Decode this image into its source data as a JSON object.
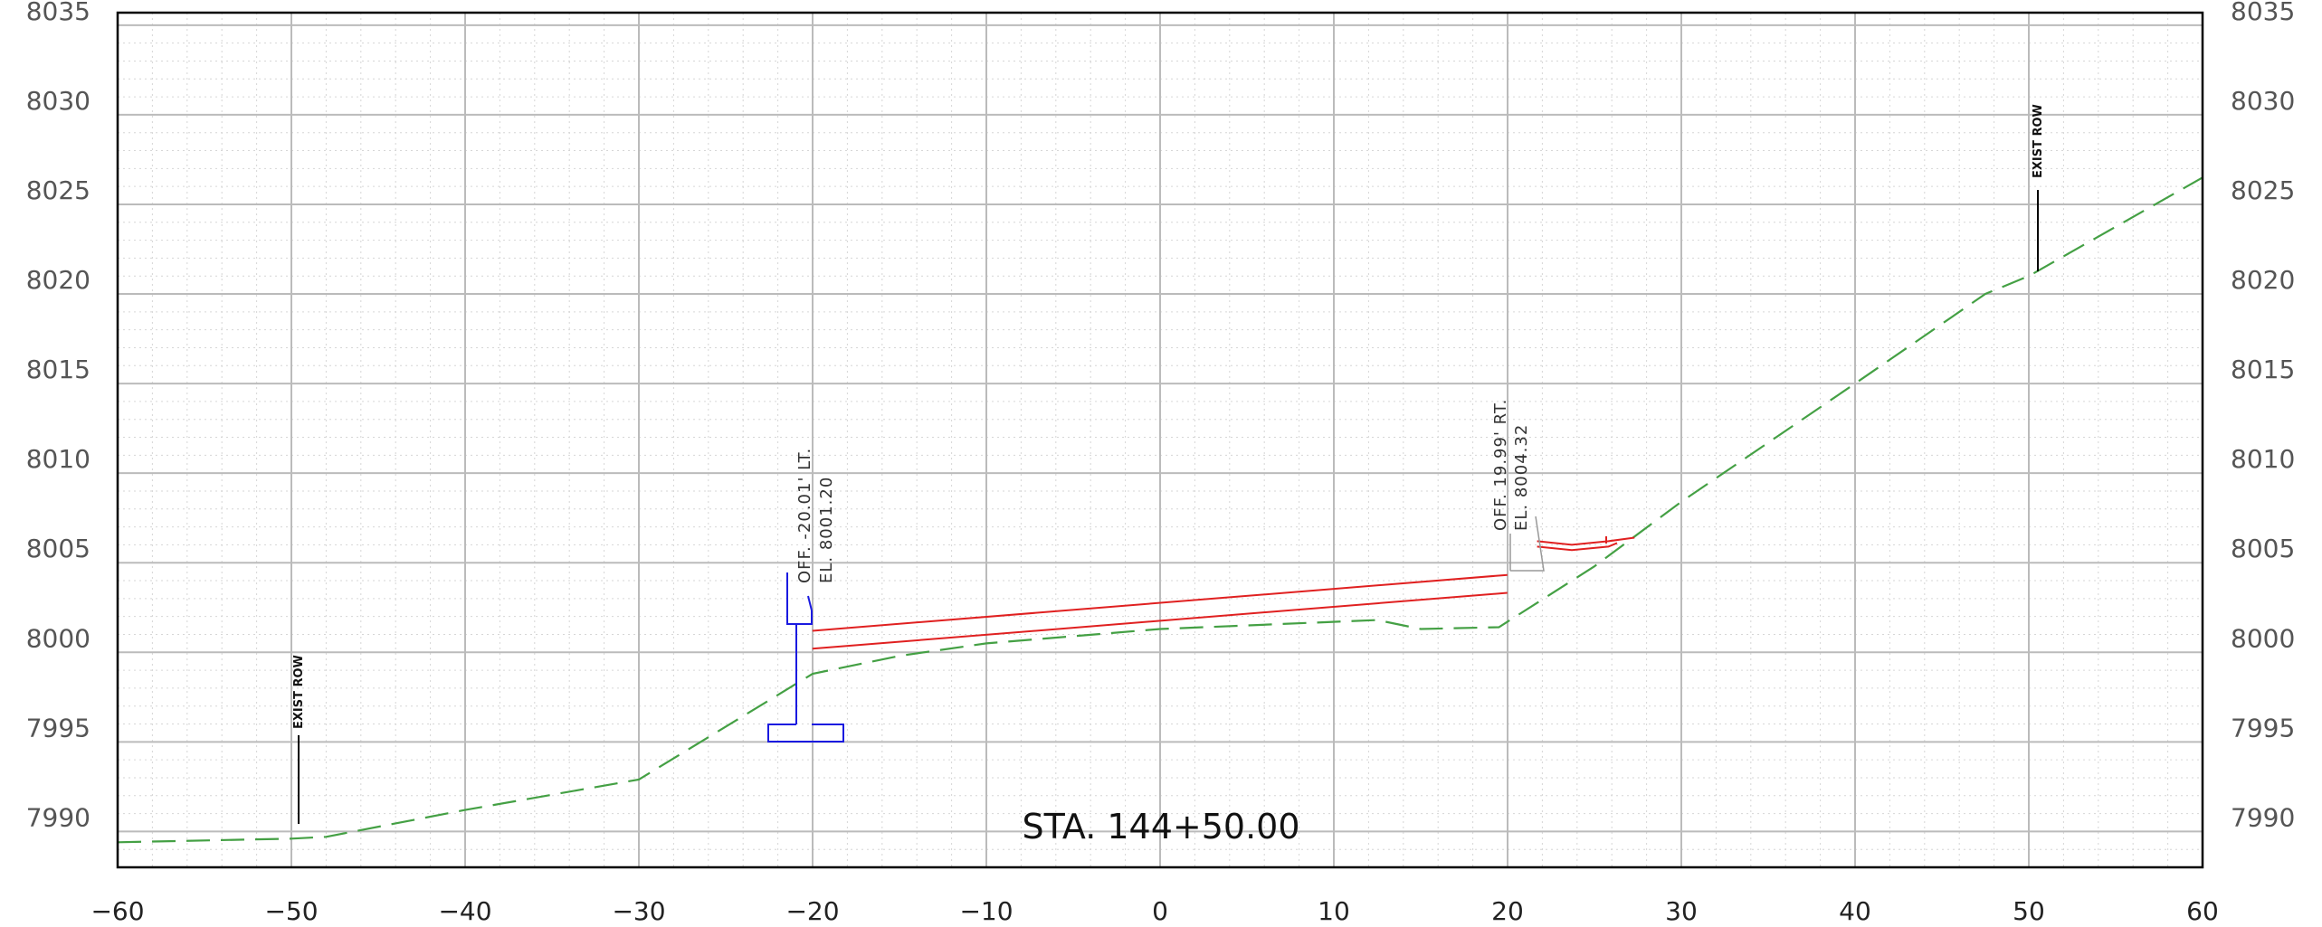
{
  "station_label": "STA. 144+50.00",
  "offset_left": {
    "line1": "OFF. -20.01' LT.",
    "line2": "EL. 8001.20"
  },
  "offset_right": {
    "line1": "OFF. 19.99' RT.",
    "line2": "EL. 8004.32"
  },
  "row_left_label": "EXIST ROW",
  "row_right_label": "EXIST ROW",
  "colors": {
    "grid": "#bbbbbb",
    "existing_ground": "#44a044",
    "proposed": "#e02020",
    "structure": "#1a1ae0",
    "frame": "#000000"
  },
  "chart_data": {
    "type": "line",
    "x_ticks": [
      "-60",
      "-50",
      "-40",
      "-30",
      "-20",
      "-10",
      "0",
      "10",
      "20",
      "30",
      "40",
      "50",
      "60"
    ],
    "y_ticks": [
      "7990",
      "7995",
      "8000",
      "8005",
      "8010",
      "8015",
      "8020",
      "8025",
      "8030",
      "8035"
    ],
    "xlim": [
      -60,
      60
    ],
    "ylim": [
      7988,
      8035.7
    ],
    "grid": true,
    "series": [
      {
        "key": "existing_ground",
        "style": "dashed",
        "points": [
          [
            -60,
            7989.4
          ],
          [
            -50,
            7989.6
          ],
          [
            -48,
            7989.7
          ],
          [
            -40,
            7991.2
          ],
          [
            -30,
            7992.9
          ],
          [
            -20,
            7998.8
          ],
          [
            -15,
            7999.8
          ],
          [
            -10,
            8000.5
          ],
          [
            0,
            8001.3
          ],
          [
            12.5,
            8001.8
          ],
          [
            15,
            8001.3
          ],
          [
            19.5,
            8001.4
          ],
          [
            25,
            8004.8
          ],
          [
            30,
            8008.4
          ],
          [
            40,
            8015.0
          ],
          [
            47.5,
            8020.0
          ],
          [
            50,
            8021.0
          ],
          [
            60,
            8026.5
          ]
        ]
      },
      {
        "key": "proposed_top",
        "style": "solid",
        "points": [
          [
            -20.01,
            8001.2
          ],
          [
            19.99,
            8004.32
          ]
        ]
      },
      {
        "key": "proposed_bottom",
        "style": "solid",
        "points": [
          [
            -20.01,
            8000.2
          ],
          [
            19.99,
            8003.32
          ]
        ]
      },
      {
        "key": "ditch_top",
        "style": "solid",
        "points": [
          [
            21.7,
            8006.2
          ],
          [
            23.7,
            8006.0
          ],
          [
            25.8,
            8006.2
          ],
          [
            27.3,
            8006.4
          ]
        ]
      },
      {
        "key": "ditch_bottom",
        "style": "solid",
        "points": [
          [
            21.7,
            8005.9
          ],
          [
            23.7,
            8005.7
          ],
          [
            25.8,
            8005.9
          ],
          [
            26.3,
            8006.1
          ]
        ]
      }
    ],
    "row_markers": [
      {
        "x": -49.7,
        "y_bottom": 7989.6,
        "y_top": 7993.8
      },
      {
        "x": 50.3,
        "y_bottom": 8021.2,
        "y_top": 8025.7
      }
    ]
  }
}
